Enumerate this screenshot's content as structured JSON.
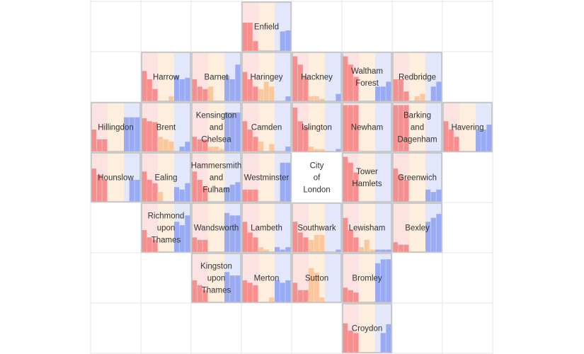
{
  "chart_data": {
    "type": "tile-grid-bar",
    "title": "",
    "grid": true,
    "series_colors": {
      "red": "#f78f8f",
      "orange": "#fbc79d",
      "blue": "#99abf4"
    },
    "band_colors": {
      "red": "#fde2e2",
      "orange": "#fdeede",
      "blue": "#e3e7fb"
    },
    "grid_cols": 8,
    "grid_rows": 7,
    "tiles": [
      {
        "name": "Enfield",
        "col": 3,
        "row": 0,
        "red": [
          0.58,
          0.58,
          0.2
        ],
        "orange": [
          0.0,
          0.0,
          0.0
        ],
        "blue": [
          0.0,
          0.4,
          0.42
        ]
      },
      {
        "name": "Harrow",
        "col": 1,
        "row": 1,
        "red": [
          0.62,
          0.45,
          0.25
        ],
        "orange": [
          0.0,
          0.0,
          0.1
        ],
        "blue": [
          0.52,
          0.45,
          0.48
        ]
      },
      {
        "name": "Barnet",
        "col": 2,
        "row": 1,
        "red": [
          0.45,
          0.3,
          0.25
        ],
        "orange": [
          0.3,
          0.0,
          0.0
        ],
        "blue": [
          0.52,
          0.45,
          0.75
        ]
      },
      {
        "name": "Haringey",
        "col": 3,
        "row": 1,
        "red": [
          0.6,
          0.45,
          0.3
        ],
        "orange": [
          0.25,
          0.4,
          0.3
        ],
        "blue": [
          0.0,
          0.0,
          0.1
        ]
      },
      {
        "name": "Hackney",
        "col": 4,
        "row": 1,
        "red": [
          0.92,
          0.75,
          0.5
        ],
        "orange": [
          0.1,
          0.1,
          0.05
        ],
        "blue": [
          0.0,
          0.0,
          0.15
        ]
      },
      {
        "name": "Waltham Forest",
        "col": 5,
        "row": 1,
        "red": [
          0.92,
          0.75,
          0.5
        ],
        "orange": [
          0.0,
          0.0,
          0.0
        ],
        "blue": [
          0.3,
          0.3,
          0.4
        ]
      },
      {
        "name": "Redbridge",
        "col": 6,
        "row": 1,
        "red": [
          0.45,
          0.45,
          0.2
        ],
        "orange": [
          0.0,
          0.1,
          0.15
        ],
        "blue": [
          0.0,
          0.3,
          0.4
        ]
      },
      {
        "name": "Hillingdon",
        "col": 0,
        "row": 2,
        "red": [
          0.45,
          0.25,
          0.25
        ],
        "orange": [
          0.0,
          0.0,
          0.0
        ],
        "blue": [
          0.7,
          0.7,
          0.7
        ]
      },
      {
        "name": "Brent",
        "col": 1,
        "row": 2,
        "red": [
          0.68,
          0.62,
          0.6
        ],
        "orange": [
          0.3,
          0.25,
          0.2
        ],
        "blue": [
          0.0,
          0.1,
          0.2
        ]
      },
      {
        "name": "Kensington and Chelsea",
        "col": 2,
        "row": 2,
        "red": [
          0.3,
          0.25,
          0.25
        ],
        "orange": [
          0.1,
          0.1,
          0.05
        ],
        "blue": [
          0.8,
          0.8,
          0.8
        ]
      },
      {
        "name": "Camden",
        "col": 3,
        "row": 2,
        "red": [
          0.62,
          0.45,
          0.3
        ],
        "orange": [
          0.2,
          0.0,
          0.15
        ],
        "blue": [
          0.0,
          0.0,
          0.1
        ]
      },
      {
        "name": "Islington",
        "col": 4,
        "row": 2,
        "red": [
          0.9,
          0.62,
          0.5
        ],
        "orange": [
          0.1,
          0.05,
          0.05
        ],
        "blue": [
          0.0,
          0.0,
          0.05
        ]
      },
      {
        "name": "Newham",
        "col": 5,
        "row": 2,
        "red": [
          0.95,
          0.95,
          0.95
        ],
        "orange": [
          0.0,
          0.0,
          0.0
        ],
        "blue": [
          0.0,
          0.0,
          0.0
        ]
      },
      {
        "name": "Barking and Dagenham",
        "col": 6,
        "row": 2,
        "red": [
          0.95,
          0.95,
          0.95
        ],
        "orange": [
          0.0,
          0.0,
          0.0
        ],
        "blue": [
          0.0,
          0.0,
          0.0
        ]
      },
      {
        "name": "Havering",
        "col": 7,
        "row": 2,
        "red": [
          0.62,
          0.45,
          0.3
        ],
        "orange": [
          0.0,
          0.0,
          0.0
        ],
        "blue": [
          0.45,
          0.45,
          0.55
        ]
      },
      {
        "name": "Hounslow",
        "col": 0,
        "row": 3,
        "red": [
          0.68,
          0.55,
          0.45
        ],
        "orange": [
          0.0,
          0.0,
          0.0
        ],
        "blue": [
          0.0,
          0.45,
          0.45
        ]
      },
      {
        "name": "Ealing",
        "col": 1,
        "row": 3,
        "red": [
          0.62,
          0.45,
          0.38
        ],
        "orange": [
          0.2,
          0.0,
          0.0
        ],
        "blue": [
          0.3,
          0.25,
          0.38
        ]
      },
      {
        "name": "Hammersmith and Fulham",
        "col": 2,
        "row": 3,
        "red": [
          0.62,
          0.45,
          0.3
        ],
        "orange": [
          0.0,
          0.0,
          0.0
        ],
        "blue": [
          0.3,
          0.35,
          0.4
        ]
      },
      {
        "name": "Westminster",
        "col": 3,
        "row": 3,
        "red": [
          0.25,
          0.25,
          0.25
        ],
        "orange": [
          0.0,
          0.0,
          0.0
        ],
        "blue": [
          0.0,
          0.8,
          0.8
        ]
      },
      {
        "name": "City of London",
        "col": 4,
        "row": 3,
        "red": [
          0.0,
          0.0,
          0.0
        ],
        "orange": [
          0.0,
          0.0,
          0.0
        ],
        "blue": [
          0.0,
          0.0,
          0.0
        ],
        "empty": true
      },
      {
        "name": "Tower Hamlets",
        "col": 5,
        "row": 3,
        "red": [
          0.92,
          0.8,
          0.6
        ],
        "orange": [
          0.0,
          0.0,
          0.0
        ],
        "blue": [
          0.0,
          0.0,
          0.0
        ]
      },
      {
        "name": "Greenwich",
        "col": 6,
        "row": 3,
        "red": [
          0.68,
          0.55,
          0.45
        ],
        "orange": [
          0.0,
          0.0,
          0.0
        ],
        "blue": [
          0.25,
          0.2,
          0.25
        ]
      },
      {
        "name": "Richmond upon Thames",
        "col": 1,
        "row": 4,
        "red": [
          0.45,
          0.3,
          0.25
        ],
        "orange": [
          0.0,
          0.0,
          0.0
        ],
        "blue": [
          0.62,
          0.55,
          0.75
        ]
      },
      {
        "name": "Wandsworth",
        "col": 2,
        "row": 4,
        "red": [
          0.3,
          0.25,
          0.25
        ],
        "orange": [
          0.0,
          0.0,
          0.0
        ],
        "blue": [
          0.8,
          0.75,
          0.75
        ]
      },
      {
        "name": "Lambeth",
        "col": 3,
        "row": 4,
        "red": [
          0.62,
          0.4,
          0.3
        ],
        "orange": [
          0.1,
          0.05,
          0.0
        ],
        "blue": [
          0.1,
          0.05,
          0.1
        ]
      },
      {
        "name": "Southwark",
        "col": 4,
        "row": 4,
        "red": [
          0.62,
          0.4,
          0.3
        ],
        "orange": [
          0.25,
          0.35,
          0.35
        ],
        "blue": [
          0.0,
          0.0,
          0.05
        ]
      },
      {
        "name": "Lewisham",
        "col": 5,
        "row": 4,
        "red": [
          0.7,
          0.45,
          0.3
        ],
        "orange": [
          0.1,
          0.25,
          0.05
        ],
        "blue": [
          0.05,
          0.05,
          0.05
        ]
      },
      {
        "name": "Bexley",
        "col": 6,
        "row": 4,
        "red": [
          0.2,
          0.15,
          0.15
        ],
        "orange": [
          0.0,
          0.0,
          0.0
        ],
        "blue": [
          0.62,
          0.7,
          0.78
        ]
      },
      {
        "name": "Kingston upon Thames",
        "col": 2,
        "row": 5,
        "red": [
          0.45,
          0.35,
          0.25
        ],
        "orange": [
          0.0,
          0.0,
          0.0
        ],
        "blue": [
          0.62,
          0.55,
          0.55
        ]
      },
      {
        "name": "Merton",
        "col": 3,
        "row": 5,
        "red": [
          0.45,
          0.4,
          0.35
        ],
        "orange": [
          0.0,
          0.0,
          0.1
        ],
        "blue": [
          0.45,
          0.4,
          0.45
        ]
      },
      {
        "name": "Sutton",
        "col": 4,
        "row": 5,
        "red": [
          0.4,
          0.25,
          0.25
        ],
        "orange": [
          0.7,
          0.6,
          0.1
        ],
        "blue": [
          0.0,
          0.0,
          0.0
        ]
      },
      {
        "name": "Bromley",
        "col": 5,
        "row": 5,
        "red": [
          0.3,
          0.25,
          0.2
        ],
        "orange": [
          0.0,
          0.0,
          0.0
        ],
        "blue": [
          0.8,
          0.88,
          0.88
        ]
      },
      {
        "name": "Croydon",
        "col": 5,
        "row": 6,
        "red": [
          0.6,
          0.45,
          0.4
        ],
        "orange": [
          0.0,
          0.0,
          0.0
        ],
        "blue": [
          0.0,
          0.4,
          0.58
        ]
      }
    ]
  }
}
